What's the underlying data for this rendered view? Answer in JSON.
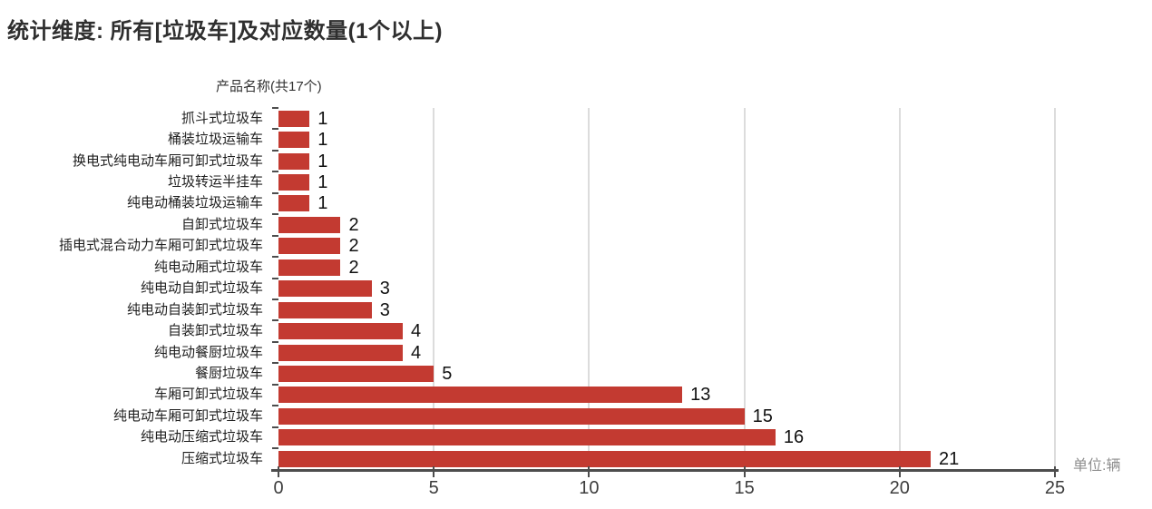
{
  "chart": {
    "title": "统计维度: 所有[垃圾车]及对应数量(1个以上)",
    "y_axis_title": "产品名称(共17个)",
    "unit_label": "单位:辆"
  },
  "chart_data": {
    "type": "bar",
    "orientation": "horizontal",
    "title": "统计维度: 所有[垃圾车]及对应数量(1个以上)",
    "y_axis_title": "产品名称(共17个)",
    "unit_label": "单位:辆",
    "categories": [
      "抓斗式垃圾车",
      "桶装垃圾运输车",
      "换电式纯电动车厢可卸式垃圾车",
      "垃圾转运半挂车",
      "纯电动桶装垃圾运输车",
      "自卸式垃圾车",
      "插电式混合动力车厢可卸式垃圾车",
      "纯电动厢式垃圾车",
      "纯电动自卸式垃圾车",
      "纯电动自装卸式垃圾车",
      "自装卸式垃圾车",
      "纯电动餐厨垃圾车",
      "餐厨垃圾车",
      "车厢可卸式垃圾车",
      "纯电动车厢可卸式垃圾车",
      "纯电动压缩式垃圾车",
      "压缩式垃圾车"
    ],
    "values": [
      1,
      1,
      1,
      1,
      1,
      2,
      2,
      2,
      3,
      3,
      4,
      4,
      5,
      13,
      15,
      16,
      21
    ],
    "value_labels_shown": true,
    "xlim": [
      0,
      25
    ],
    "x_ticks": [
      0,
      5,
      10,
      15,
      20,
      25
    ],
    "grid": true,
    "legend": "none",
    "colors": {
      "bar": "#c33a31",
      "grid": "#dcdcdc",
      "axis": "#4d4d4d",
      "title": "#2f2f2f",
      "category_label": "#1f1f1f",
      "value_label": "#111111",
      "tick_label": "#3d3d3d",
      "unit_label": "#8f8f8f",
      "background": "#ffffff"
    }
  }
}
